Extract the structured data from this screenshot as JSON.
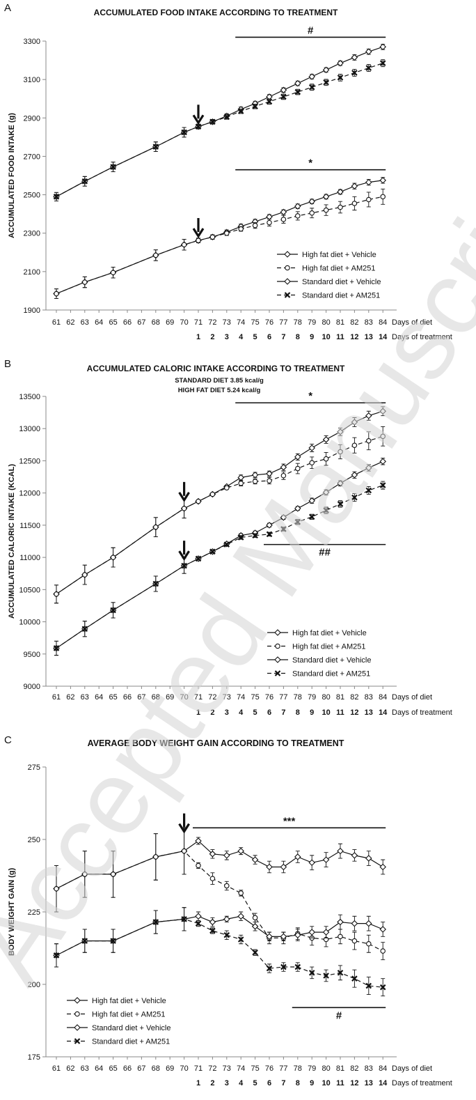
{
  "chart_data": [
    {
      "panel": "A",
      "type": "line",
      "title": "ACCUMULATED FOOD INTAKE ACCORDING TO TREATMENT",
      "subtitles": [],
      "ylabel": "ACCUMULATED FOOD INTAKE (g)",
      "ylim": [
        1900,
        3300
      ],
      "yticks": [
        1900,
        2100,
        2300,
        2500,
        2700,
        2900,
        3100,
        3300
      ],
      "x_days_of_diet": [
        61,
        62,
        63,
        64,
        65,
        66,
        67,
        68,
        69,
        70,
        71,
        72,
        73,
        74,
        75,
        76,
        77,
        78,
        79,
        80,
        81,
        82,
        83,
        84
      ],
      "x_label": "Days of diet",
      "treatment_days": [
        "1",
        "2",
        "3",
        "4",
        "5",
        "6",
        "7",
        "8",
        "9",
        "10",
        "11",
        "12",
        "13",
        "14"
      ],
      "treatment_label": "Days of treatment",
      "treatment_arrow_day": 71,
      "significance": [
        {
          "label": "#",
          "from": 74,
          "to": 84,
          "y": 3320
        },
        {
          "label": "*",
          "from": 74,
          "to": 84,
          "y": 2630
        }
      ],
      "legend": [
        {
          "label": "High fat diet + Vehicle",
          "marker": "diamond",
          "dash": false
        },
        {
          "label": "High fat diet + AM251",
          "marker": "circle",
          "dash": true
        },
        {
          "label": "Standard diet + Vehicle",
          "marker": "diamond",
          "dash": false
        },
        {
          "label": "Standard diet + AM251",
          "marker": "x",
          "dash": true
        }
      ],
      "series": [
        {
          "name": "Standard diet + Vehicle",
          "marker": "diamond",
          "dash": false,
          "x": [
            61,
            63,
            65,
            68,
            70,
            71,
            72,
            73,
            74,
            75,
            76,
            77,
            78,
            79,
            80,
            81,
            82,
            83,
            84
          ],
          "y": [
            2490,
            2570,
            2645,
            2750,
            2825,
            2855,
            2880,
            2910,
            2945,
            2975,
            3010,
            3045,
            3080,
            3115,
            3150,
            3185,
            3215,
            3245,
            3270
          ],
          "err": [
            22,
            25,
            25,
            25,
            25,
            12,
            12,
            12,
            12,
            12,
            12,
            12,
            12,
            12,
            12,
            12,
            14,
            14,
            14
          ]
        },
        {
          "name": "Standard diet + AM251",
          "marker": "x",
          "dash": true,
          "x": [
            61,
            63,
            65,
            68,
            70,
            71,
            72,
            73,
            74,
            75,
            76,
            77,
            78,
            79,
            80,
            81,
            82,
            83,
            84
          ],
          "y": [
            2490,
            2570,
            2645,
            2750,
            2825,
            2855,
            2880,
            2905,
            2935,
            2960,
            2985,
            3010,
            3035,
            3060,
            3085,
            3110,
            3135,
            3160,
            3185
          ],
          "err": [
            22,
            25,
            25,
            25,
            25,
            12,
            12,
            12,
            12,
            12,
            14,
            14,
            14,
            16,
            16,
            18,
            18,
            18,
            18
          ]
        },
        {
          "name": "High fat diet + Vehicle",
          "marker": "diamond",
          "dash": false,
          "x": [
            61,
            63,
            65,
            68,
            70,
            71,
            72,
            73,
            74,
            75,
            76,
            77,
            78,
            79,
            80,
            81,
            82,
            83,
            84
          ],
          "y": [
            1985,
            2045,
            2095,
            2185,
            2240,
            2262,
            2280,
            2305,
            2335,
            2360,
            2385,
            2410,
            2440,
            2465,
            2490,
            2515,
            2545,
            2565,
            2575
          ],
          "err": [
            25,
            28,
            28,
            28,
            28,
            12,
            12,
            12,
            12,
            12,
            12,
            12,
            12,
            12,
            12,
            12,
            15,
            15,
            15
          ]
        },
        {
          "name": "High fat diet + AM251",
          "marker": "circle",
          "dash": true,
          "x": [
            61,
            63,
            65,
            68,
            70,
            71,
            72,
            73,
            74,
            75,
            76,
            77,
            78,
            79,
            80,
            81,
            82,
            83,
            84
          ],
          "y": [
            1985,
            2045,
            2095,
            2185,
            2240,
            2262,
            2280,
            2300,
            2322,
            2340,
            2355,
            2372,
            2390,
            2405,
            2420,
            2435,
            2455,
            2475,
            2490
          ],
          "err": [
            25,
            28,
            28,
            28,
            28,
            12,
            12,
            12,
            12,
            15,
            18,
            20,
            22,
            25,
            28,
            30,
            35,
            38,
            40
          ]
        }
      ]
    },
    {
      "panel": "B",
      "type": "line",
      "title": "ACCUMULATED CALORIC INTAKE ACCORDING TO TREATMENT",
      "subtitles": [
        "STANDARD DIET 3.85 kcal/g",
        "HIGH FAT DIET 5.24 kcal/g"
      ],
      "ylabel": "ACCUMULATED CALORIC INTAKE (KCAL)",
      "ylim": [
        9000,
        13500
      ],
      "yticks": [
        9000,
        9500,
        10000,
        10500,
        11000,
        11500,
        12000,
        12500,
        13000,
        13500
      ],
      "x_days_of_diet": [
        61,
        62,
        63,
        64,
        65,
        66,
        67,
        68,
        69,
        70,
        71,
        72,
        73,
        74,
        75,
        76,
        77,
        78,
        79,
        80,
        81,
        82,
        83,
        84
      ],
      "x_label": "Days of diet",
      "treatment_days": [
        "1",
        "2",
        "3",
        "4",
        "5",
        "6",
        "7",
        "8",
        "9",
        "10",
        "11",
        "12",
        "13",
        "14"
      ],
      "treatment_label": "Days of treatment",
      "treatment_arrow_day": 70,
      "significance": [
        {
          "label": "*",
          "from": 74,
          "to": 84,
          "y": 13400
        },
        {
          "label": "##",
          "from": 76,
          "to": 84,
          "y": 11200
        }
      ],
      "legend": [
        {
          "label": "High fat diet + Vehicle",
          "marker": "diamond",
          "dash": false
        },
        {
          "label": "High fat diet + AM251",
          "marker": "circle",
          "dash": true
        },
        {
          "label": "Standard diet + Vehicle",
          "marker": "diamond",
          "dash": false
        },
        {
          "label": "Standard diet + AM251",
          "marker": "x",
          "dash": true
        }
      ],
      "series": [
        {
          "name": "High fat diet + Vehicle",
          "marker": "diamond",
          "dash": false,
          "x": [
            61,
            63,
            65,
            68,
            70,
            71,
            72,
            73,
            74,
            75,
            76,
            77,
            78,
            79,
            80,
            81,
            82,
            83,
            84
          ],
          "y": [
            10430,
            10730,
            11000,
            11470,
            11760,
            11870,
            11980,
            12100,
            12240,
            12280,
            12300,
            12400,
            12560,
            12700,
            12830,
            12950,
            13100,
            13200,
            13270
          ],
          "err": [
            140,
            150,
            150,
            150,
            150,
            20,
            20,
            20,
            40,
            40,
            40,
            50,
            50,
            60,
            60,
            60,
            70,
            70,
            70
          ]
        },
        {
          "name": "High fat diet + AM251",
          "marker": "circle",
          "dash": true,
          "x": [
            61,
            63,
            65,
            68,
            70,
            71,
            72,
            73,
            74,
            75,
            76,
            77,
            78,
            79,
            80,
            81,
            82,
            83,
            84
          ],
          "y": [
            10430,
            10730,
            11000,
            11470,
            11760,
            11870,
            11980,
            12080,
            12150,
            12180,
            12190,
            12270,
            12380,
            12470,
            12530,
            12640,
            12740,
            12810,
            12880
          ],
          "err": [
            140,
            150,
            150,
            150,
            150,
            20,
            20,
            20,
            40,
            40,
            50,
            60,
            80,
            90,
            100,
            110,
            120,
            140,
            150
          ]
        },
        {
          "name": "Standard diet + Vehicle",
          "marker": "diamond",
          "dash": false,
          "x": [
            61,
            63,
            65,
            68,
            70,
            71,
            72,
            73,
            74,
            75,
            76,
            77,
            78,
            79,
            80,
            81,
            82,
            83,
            84
          ],
          "y": [
            9590,
            9890,
            10180,
            10590,
            10870,
            10980,
            11090,
            11210,
            11340,
            11380,
            11500,
            11620,
            11760,
            11880,
            12010,
            12150,
            12280,
            12390,
            12490
          ],
          "err": [
            110,
            120,
            120,
            120,
            120,
            20,
            20,
            20,
            30,
            30,
            30,
            30,
            30,
            40,
            40,
            40,
            50,
            50,
            50
          ]
        },
        {
          "name": "Standard diet + AM251",
          "marker": "x",
          "dash": true,
          "x": [
            61,
            63,
            65,
            68,
            70,
            71,
            72,
            73,
            74,
            75,
            76,
            77,
            78,
            79,
            80,
            81,
            82,
            83,
            84
          ],
          "y": [
            9590,
            9890,
            10180,
            10590,
            10870,
            10980,
            11090,
            11200,
            11310,
            11340,
            11360,
            11440,
            11550,
            11630,
            11730,
            11830,
            11930,
            12040,
            12120
          ],
          "err": [
            110,
            120,
            120,
            120,
            120,
            20,
            20,
            20,
            30,
            30,
            30,
            30,
            40,
            40,
            50,
            50,
            60,
            60,
            60
          ]
        }
      ]
    },
    {
      "panel": "C",
      "type": "line",
      "title": "AVERAGE BODY WEIGHT GAIN ACCORDING TO TREATMENT",
      "subtitles": [],
      "ylabel": "BODY WEIGHT GAIN (g)",
      "ylim": [
        175,
        275
      ],
      "yticks": [
        175,
        200,
        225,
        250,
        275
      ],
      "x_days_of_diet": [
        61,
        62,
        63,
        64,
        65,
        66,
        67,
        68,
        69,
        70,
        71,
        72,
        73,
        74,
        75,
        76,
        77,
        78,
        79,
        80,
        81,
        82,
        83,
        84
      ],
      "x_label": "Days of diet",
      "treatment_days": [
        "1",
        "2",
        "3",
        "4",
        "5",
        "6",
        "7",
        "8",
        "9",
        "10",
        "11",
        "12",
        "13",
        "14"
      ],
      "treatment_label": "Days of treatment",
      "treatment_arrow_day": 70,
      "significance": [
        {
          "label": "***",
          "from": 71,
          "to": 84,
          "y": 254
        },
        {
          "label": "#",
          "from": 78,
          "to": 84,
          "y": 192
        }
      ],
      "legend": [
        {
          "label": "High fat diet + Vehicle",
          "marker": "diamond",
          "dash": false
        },
        {
          "label": "High fat diet + AM251",
          "marker": "circle",
          "dash": true
        },
        {
          "label": "Standard diet + Vehicle",
          "marker": "diamond",
          "dash": false
        },
        {
          "label": "Standard diet + AM251",
          "marker": "x",
          "dash": true
        }
      ],
      "series": [
        {
          "name": "High fat diet + Vehicle",
          "marker": "diamond",
          "dash": false,
          "x": [
            61,
            63,
            65,
            68,
            70,
            71,
            72,
            73,
            74,
            75,
            76,
            77,
            78,
            79,
            80,
            81,
            82,
            83,
            84
          ],
          "y": [
            233,
            238,
            238,
            244,
            246,
            249.5,
            245,
            244.5,
            246,
            243,
            240.5,
            240.5,
            244,
            242,
            243,
            246,
            244.5,
            243.5,
            240.5
          ],
          "err": [
            8,
            8,
            8,
            8,
            8,
            1.2,
            1.5,
            1.5,
            1.2,
            1.5,
            2,
            2,
            2,
            2.5,
            2.5,
            2.5,
            2,
            2.5,
            2.5
          ]
        },
        {
          "name": "High fat diet + AM251",
          "marker": "circle",
          "dash": true,
          "x": [
            61,
            63,
            65,
            68,
            70,
            71,
            72,
            73,
            74,
            75,
            76,
            77,
            78,
            79,
            80,
            81,
            82,
            83,
            84
          ],
          "y": [
            233,
            238,
            238,
            244,
            246,
            241,
            236.5,
            234,
            231.5,
            223,
            216,
            216,
            217.5,
            216,
            215.5,
            216.5,
            215,
            214,
            211.5
          ],
          "err": [
            8,
            8,
            8,
            8,
            8,
            1,
            2,
            1.5,
            1,
            1.5,
            2,
            2,
            2,
            2.5,
            2.5,
            2.5,
            3,
            3,
            3
          ]
        },
        {
          "name": "Standard diet + Vehicle",
          "marker": "diamond",
          "dash": false,
          "x": [
            61,
            63,
            65,
            68,
            70,
            71,
            72,
            73,
            74,
            75,
            76,
            77,
            78,
            79,
            80,
            81,
            82,
            83,
            84
          ],
          "y": [
            210,
            215,
            215,
            221.5,
            222.5,
            223.5,
            221.5,
            222.5,
            223.5,
            220,
            216.5,
            216.5,
            217,
            218,
            218,
            221.5,
            221,
            221,
            219
          ],
          "err": [
            4,
            4,
            4,
            4,
            4,
            1.5,
            1.5,
            1,
            1.5,
            1.5,
            1.5,
            1.5,
            2,
            2,
            2,
            2.5,
            2.5,
            2.5,
            2.5
          ]
        },
        {
          "name": "Standard diet + AM251",
          "marker": "x",
          "dash": true,
          "x": [
            61,
            63,
            65,
            68,
            70,
            71,
            72,
            73,
            74,
            75,
            76,
            77,
            78,
            79,
            80,
            81,
            82,
            83,
            84
          ],
          "y": [
            210,
            215,
            215,
            221.5,
            222.5,
            221,
            218.5,
            217,
            215.5,
            211,
            205.5,
            206,
            206,
            204,
            203,
            204,
            202,
            199.5,
            199
          ],
          "err": [
            4,
            4,
            4,
            4,
            4,
            1,
            1,
            1.5,
            1.5,
            1,
            1.5,
            1.5,
            1.5,
            2,
            2,
            2.5,
            3,
            3,
            3
          ]
        }
      ]
    }
  ],
  "panels": [
    {
      "letter": "A"
    },
    {
      "letter": "B"
    },
    {
      "letter": "C"
    }
  ],
  "watermark": "Accepted Manuscript",
  "colors": {
    "line": "#111111",
    "axis": "#888888",
    "watermark": "#d3d3d3"
  }
}
